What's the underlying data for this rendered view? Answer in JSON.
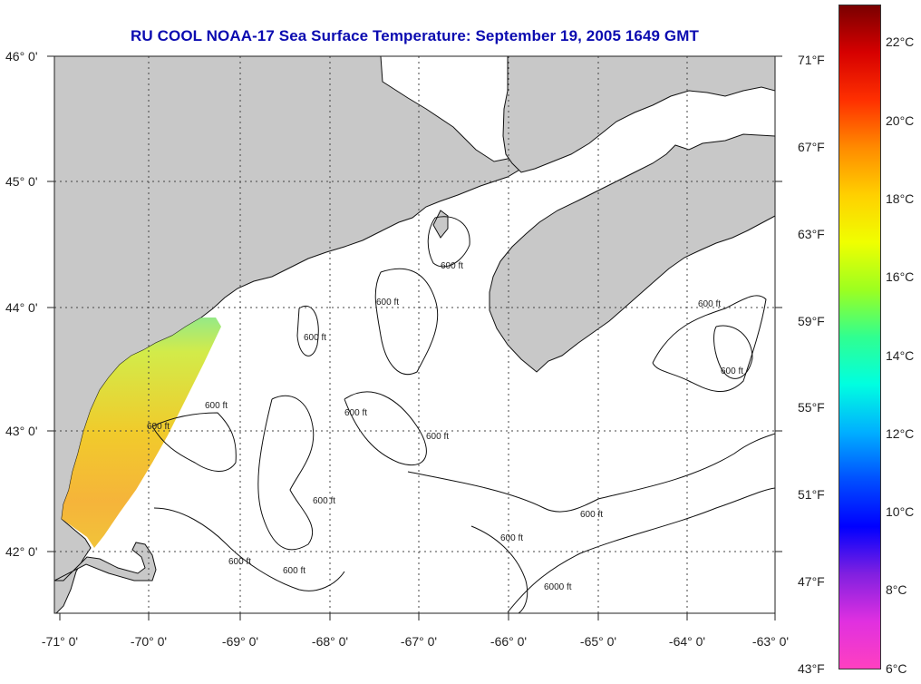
{
  "title": "RU COOL  NOAA-17  Sea Surface Temperature:  September 19, 2005 1649 GMT",
  "map": {
    "lat_labels": [
      "46° 0'",
      "45° 0'",
      "44° 0'",
      "43° 0'",
      "42° 0'"
    ],
    "lon_labels": [
      "-71° 0'",
      "-70° 0'",
      "-69° 0'",
      "-68° 0'",
      "-67° 0'",
      "-66° 0'",
      "-65° 0'",
      "-64° 0'",
      "-63° 0'"
    ],
    "contour_labels": [
      "600 ft",
      "600 ft",
      "600 ft",
      "600 ft",
      "600 ft",
      "600 ft",
      "600 ft",
      "600 ft",
      "600 ft",
      "600 ft",
      "600 ft",
      "600 ft",
      "600 ft",
      "600 ft",
      "6000 ft"
    ],
    "colors": {
      "land": "#c8c8c8",
      "water": "#ffffff",
      "grid": "#444444"
    }
  },
  "colorbar": {
    "celsius_labels": [
      "22°C",
      "20°C",
      "18°C",
      "16°C",
      "14°C",
      "12°C",
      "10°C",
      "8°C",
      "6°C"
    ],
    "fahrenheit_labels": [
      "71°F",
      "67°F",
      "63°F",
      "59°F",
      "55°F",
      "51°F",
      "47°F",
      "43°F"
    ],
    "colors_top_to_bottom": [
      "#7a0000",
      "#d60000",
      "#ff3000",
      "#ff8a00",
      "#ffd000",
      "#f0ff00",
      "#9cff20",
      "#30ff90",
      "#00ffe0",
      "#00b0ff",
      "#0050ff",
      "#0000ff",
      "#8020e0",
      "#e030e0",
      "#ff40c0"
    ]
  }
}
